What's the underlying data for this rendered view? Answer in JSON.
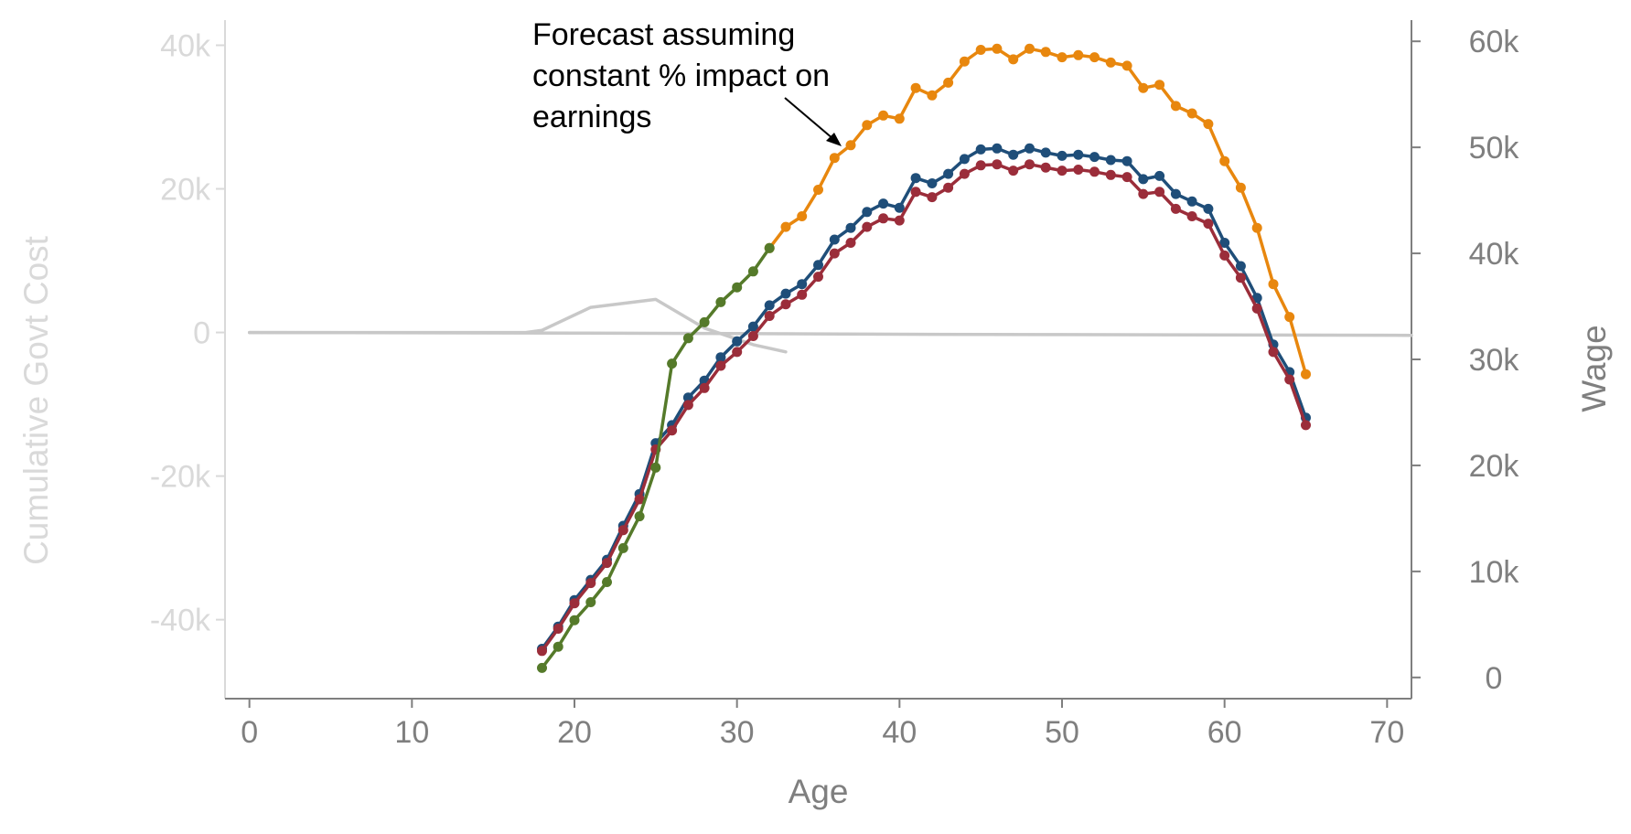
{
  "chart_data": {
    "type": "line",
    "xlabel": "Age",
    "ylabel_left": "Cumulative Govt Cost",
    "ylabel_right": "Wage",
    "xlim": [
      -1.5,
      71.5
    ],
    "ylim_left": [
      -51000,
      43500
    ],
    "ylim_right": [
      -2000,
      62000
    ],
    "x_ticks": [
      0,
      10,
      20,
      30,
      40,
      50,
      60,
      70
    ],
    "x_tick_labels": [
      "0",
      "10",
      "20",
      "30",
      "40",
      "50",
      "60",
      "70"
    ],
    "y_left_ticks": [
      40000,
      20000,
      0,
      -20000,
      -40000
    ],
    "y_left_tick_labels": [
      "40k",
      "20k",
      "0",
      "-20k",
      "-40k"
    ],
    "y_right_ticks": [
      60000,
      50000,
      40000,
      30000,
      20000,
      10000,
      0
    ],
    "y_right_tick_labels": [
      "60k",
      "50k",
      "40k",
      "30k",
      "20k",
      "10k",
      "0"
    ],
    "grid": false,
    "annotation": {
      "lines": [
        "Forecast assuming",
        "constant % impact on",
        "earnings"
      ]
    },
    "colors": {
      "left_axis": "#d9d9d9",
      "right_axis": "#7f7f7f",
      "orange": "#e8870e",
      "blue": "#1f4e79",
      "red": "#9b2d3a",
      "green": "#557a2a",
      "gray": "#c8c8c8"
    },
    "series": [
      {
        "axis": "left",
        "color": "#c8c8c8",
        "markers": false,
        "x": [
          0,
          17,
          18,
          21,
          25,
          28,
          31,
          33
        ],
        "y": [
          0,
          0,
          300,
          3500,
          4600,
          600,
          -1700,
          -2700
        ]
      },
      {
        "axis": "left",
        "color": "#c8c8c8",
        "markers": false,
        "x": [
          0,
          20,
          30,
          40,
          50,
          60,
          71.5
        ],
        "y": [
          0,
          -80,
          -150,
          -250,
          -300,
          -350,
          -400
        ]
      },
      {
        "axis": "right",
        "color": "#e8870e",
        "markers": true,
        "x": [
          32,
          33,
          34,
          35,
          36,
          37,
          38,
          39,
          40,
          41,
          42,
          43,
          44,
          45,
          46,
          47,
          48,
          49,
          50,
          51,
          52,
          53,
          54,
          55,
          56,
          57,
          58,
          59,
          60,
          61,
          62,
          63,
          64,
          65
        ],
        "y": [
          40500,
          42500,
          43500,
          46000,
          49000,
          50200,
          52100,
          53000,
          52700,
          55600,
          54900,
          56100,
          58100,
          59200,
          59300,
          58300,
          59300,
          59000,
          58500,
          58700,
          58500,
          58000,
          57700,
          55600,
          55900,
          53900,
          53200,
          52200,
          48700,
          46200,
          42400,
          37100,
          34000,
          28600
        ]
      },
      {
        "axis": "right",
        "color": "#1f4e79",
        "markers": true,
        "x": [
          18,
          19,
          20,
          21,
          22,
          23,
          24,
          25,
          26,
          27,
          28,
          29,
          30,
          31,
          32,
          33,
          34,
          35,
          36,
          37,
          38,
          39,
          40,
          41,
          42,
          43,
          44,
          45,
          46,
          47,
          48,
          49,
          50,
          51,
          52,
          53,
          54,
          55,
          56,
          57,
          58,
          59,
          60,
          61,
          62,
          63,
          64,
          65
        ],
        "y": [
          2700,
          4800,
          7300,
          9200,
          11100,
          14300,
          17300,
          22100,
          23800,
          26400,
          28000,
          30200,
          31700,
          33100,
          35100,
          36200,
          37100,
          38900,
          41300,
          42400,
          43900,
          44700,
          44300,
          47100,
          46600,
          47500,
          48900,
          49800,
          49900,
          49300,
          49900,
          49500,
          49200,
          49300,
          49100,
          48800,
          48700,
          47000,
          47300,
          45600,
          44900,
          44200,
          41000,
          38800,
          35800,
          31400,
          28800,
          24500
        ]
      },
      {
        "axis": "right",
        "color": "#9b2d3a",
        "markers": true,
        "x": [
          18,
          19,
          20,
          21,
          22,
          23,
          24,
          25,
          26,
          27,
          28,
          29,
          30,
          31,
          32,
          33,
          34,
          35,
          36,
          37,
          38,
          39,
          40,
          41,
          42,
          43,
          44,
          45,
          46,
          47,
          48,
          49,
          50,
          51,
          52,
          53,
          54,
          55,
          56,
          57,
          58,
          59,
          60,
          61,
          62,
          63,
          64,
          65
        ],
        "y": [
          2500,
          4600,
          7000,
          8900,
          10800,
          13900,
          16800,
          21500,
          23300,
          25700,
          27300,
          29400,
          30700,
          32200,
          34100,
          35200,
          36100,
          37800,
          40000,
          41000,
          42500,
          43300,
          43100,
          45800,
          45300,
          46200,
          47500,
          48300,
          48400,
          47800,
          48400,
          48100,
          47800,
          47900,
          47700,
          47400,
          47200,
          45600,
          45800,
          44200,
          43500,
          42800,
          39800,
          37700,
          34800,
          30700,
          28100,
          23800
        ]
      },
      {
        "axis": "right",
        "color": "#557a2a",
        "markers": true,
        "x": [
          18,
          19,
          20,
          21,
          22,
          23,
          24,
          25,
          26,
          27,
          28,
          29,
          30,
          31,
          32
        ],
        "y": [
          900,
          2900,
          5400,
          7100,
          9000,
          12200,
          15200,
          19800,
          29600,
          32000,
          33500,
          35400,
          36800,
          38300,
          40500
        ]
      }
    ]
  }
}
